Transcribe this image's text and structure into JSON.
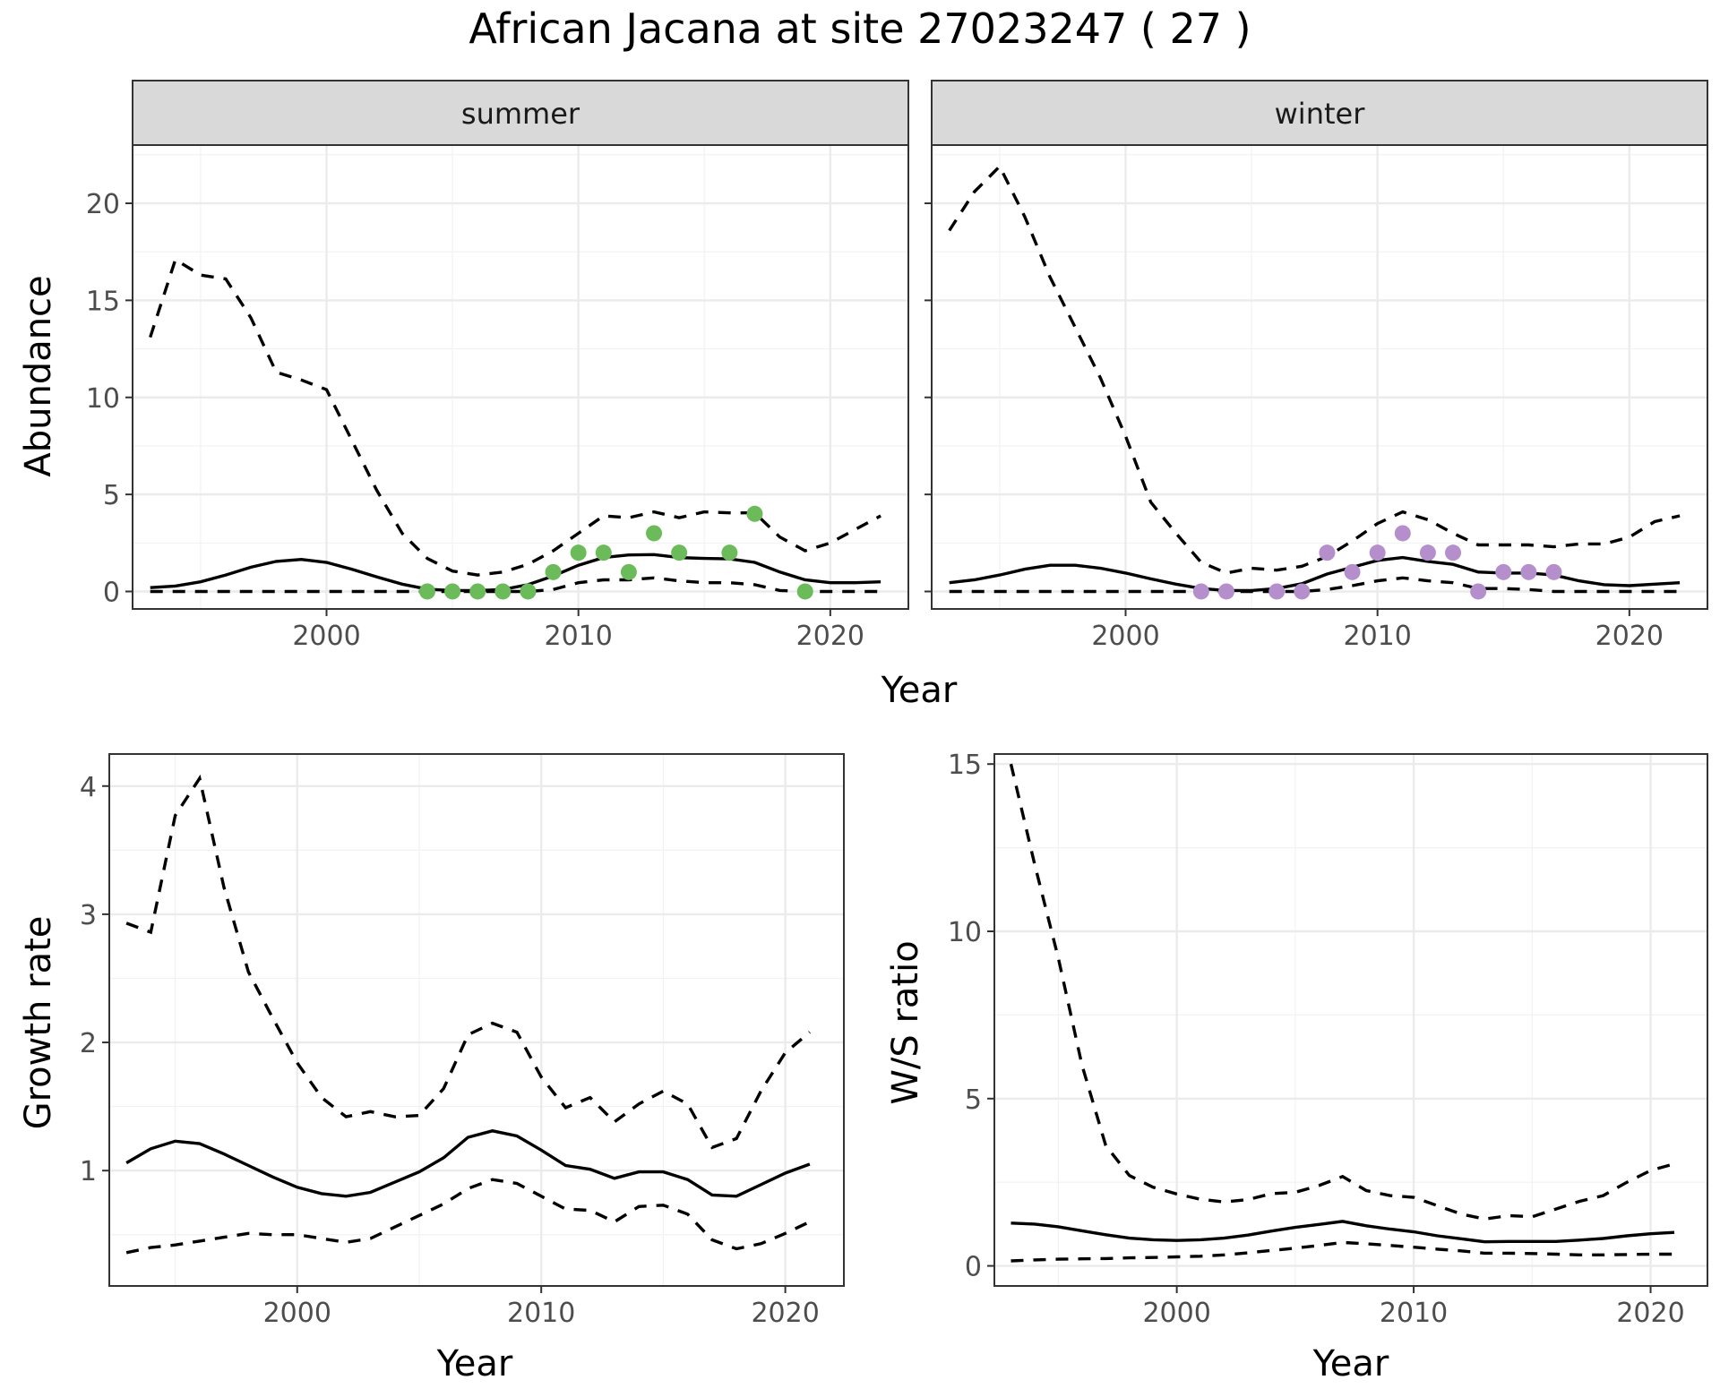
{
  "title": "African Jacana at site 27023247 ( 27 )",
  "colors": {
    "summer_points": "#6bbb5a",
    "winter_points": "#b48fcc",
    "line": "#000000"
  },
  "chart_data": [
    {
      "id": "summer",
      "type": "line",
      "facet": "summer",
      "ylabel": "Abundance",
      "xlim": [
        1992.3,
        2023.1
      ],
      "ylim": [
        -0.9,
        23
      ],
      "xticks": [
        2000,
        2010,
        2020
      ],
      "yticks": [
        0,
        5,
        10,
        15,
        20
      ],
      "grid": true,
      "fit": {
        "x": [
          1993,
          1994,
          1995,
          1996,
          1997,
          1998,
          1999,
          2000,
          2001,
          2002,
          2003,
          2004,
          2005,
          2006,
          2007,
          2008,
          2009,
          2010,
          2011,
          2012,
          2013,
          2014,
          2015,
          2016,
          2017,
          2018,
          2019,
          2020,
          2021,
          2022
        ],
        "y": [
          0.2,
          0.28,
          0.5,
          0.85,
          1.25,
          1.55,
          1.65,
          1.5,
          1.15,
          0.75,
          0.38,
          0.12,
          0.05,
          0.05,
          0.1,
          0.35,
          0.8,
          1.35,
          1.75,
          1.88,
          1.9,
          1.75,
          1.7,
          1.68,
          1.5,
          1.0,
          0.6,
          0.45,
          0.45,
          0.5
        ]
      },
      "upper": {
        "x": [
          1993,
          1994,
          1995,
          1996,
          1997,
          1998,
          1999,
          2000,
          2001,
          2002,
          2003,
          2004,
          2005,
          2006,
          2007,
          2008,
          2009,
          2010,
          2011,
          2012,
          2013,
          2014,
          2015,
          2016,
          2017,
          2018,
          2019,
          2020,
          2021,
          2022
        ],
        "y": [
          13.1,
          17.1,
          16.3,
          16.1,
          14.1,
          11.3,
          10.9,
          10.4,
          7.8,
          5.2,
          3.0,
          1.7,
          1.05,
          0.85,
          1.0,
          1.4,
          2.1,
          3.0,
          3.9,
          3.8,
          4.1,
          3.8,
          4.1,
          4.05,
          4.05,
          2.8,
          2.1,
          2.5,
          3.2,
          3.9
        ]
      },
      "lower": {
        "x": [
          1993,
          1994,
          1995,
          1996,
          1997,
          1998,
          1999,
          2000,
          2001,
          2002,
          2003,
          2004,
          2005,
          2006,
          2007,
          2008,
          2009,
          2010,
          2011,
          2012,
          2013,
          2014,
          2015,
          2016,
          2017,
          2018,
          2019,
          2020,
          2021,
          2022
        ],
        "y": [
          0,
          0,
          0,
          0,
          0,
          0,
          0,
          0,
          0,
          0,
          0,
          0,
          0,
          0,
          0,
          0,
          0.1,
          0.45,
          0.6,
          0.6,
          0.7,
          0.55,
          0.45,
          0.45,
          0.35,
          0.05,
          0,
          0,
          0,
          0
        ]
      },
      "points": {
        "x": [
          2004,
          2005,
          2006,
          2007,
          2008,
          2009,
          2010,
          2011,
          2012,
          2013,
          2014,
          2016,
          2017,
          2019
        ],
        "y": [
          0,
          0,
          0,
          0,
          0,
          1,
          2,
          2,
          1,
          3,
          2,
          2,
          4,
          0
        ]
      }
    },
    {
      "id": "winter",
      "type": "line",
      "facet": "winter",
      "ylabel": "",
      "xlim": [
        1992.3,
        2023.1
      ],
      "ylim": [
        -0.9,
        23
      ],
      "xticks": [
        2000,
        2010,
        2020
      ],
      "yticks": [
        0,
        5,
        10,
        15,
        20
      ],
      "grid": true,
      "fit": {
        "x": [
          1993,
          1994,
          1995,
          1996,
          1997,
          1998,
          1999,
          2000,
          2001,
          2002,
          2003,
          2004,
          2005,
          2006,
          2007,
          2008,
          2009,
          2010,
          2011,
          2012,
          2013,
          2014,
          2015,
          2016,
          2017,
          2018,
          2019,
          2020,
          2021,
          2022
        ],
        "y": [
          0.45,
          0.6,
          0.85,
          1.15,
          1.35,
          1.35,
          1.2,
          0.95,
          0.65,
          0.38,
          0.15,
          0.05,
          0.05,
          0.15,
          0.4,
          0.9,
          1.25,
          1.6,
          1.75,
          1.55,
          1.4,
          1.0,
          0.95,
          0.95,
          0.85,
          0.55,
          0.35,
          0.3,
          0.38,
          0.45
        ]
      },
      "upper": {
        "x": [
          1993,
          1994,
          1995,
          1996,
          1997,
          1998,
          1999,
          2000,
          2001,
          2002,
          2003,
          2004,
          2005,
          2006,
          2007,
          2008,
          2009,
          2010,
          2011,
          2012,
          2013,
          2014,
          2015,
          2016,
          2017,
          2018,
          2019,
          2020,
          2021,
          2022
        ],
        "y": [
          18.6,
          20.6,
          21.9,
          19.3,
          16.2,
          13.6,
          11.0,
          8.0,
          4.6,
          3.0,
          1.5,
          0.95,
          1.2,
          1.1,
          1.3,
          1.8,
          2.6,
          3.5,
          4.1,
          3.7,
          3.0,
          2.4,
          2.4,
          2.4,
          2.3,
          2.45,
          2.45,
          2.8,
          3.6,
          3.9
        ]
      },
      "lower": {
        "x": [
          1993,
          1994,
          1995,
          1996,
          1997,
          1998,
          1999,
          2000,
          2001,
          2002,
          2003,
          2004,
          2005,
          2006,
          2007,
          2008,
          2009,
          2010,
          2011,
          2012,
          2013,
          2014,
          2015,
          2016,
          2017,
          2018,
          2019,
          2020,
          2021,
          2022
        ],
        "y": [
          0,
          0,
          0,
          0,
          0,
          0,
          0,
          0,
          0,
          0,
          0,
          0,
          0,
          0,
          0,
          0.1,
          0.3,
          0.55,
          0.7,
          0.55,
          0.45,
          0.15,
          0.15,
          0.1,
          0,
          0,
          0,
          0,
          0,
          0
        ]
      },
      "points": {
        "x": [
          2003,
          2004,
          2006,
          2007,
          2008,
          2009,
          2010,
          2011,
          2012,
          2013,
          2014,
          2015,
          2016,
          2017
        ],
        "y": [
          0,
          0,
          0,
          0,
          2,
          1,
          2,
          3,
          2,
          2,
          0,
          1,
          1,
          1
        ]
      }
    },
    {
      "id": "growth",
      "type": "line",
      "xlabel": "Year",
      "ylabel": "Growth rate",
      "xlim": [
        1992.3,
        2022.4
      ],
      "ylim": [
        0.1,
        4.25
      ],
      "xticks": [
        2000,
        2010,
        2020
      ],
      "yticks": [
        1,
        2,
        3,
        4
      ],
      "grid": true,
      "fit": {
        "x": [
          1993,
          1994,
          1995,
          1996,
          1997,
          1998,
          1999,
          2000,
          2001,
          2002,
          2003,
          2004,
          2005,
          2006,
          2007,
          2008,
          2009,
          2010,
          2011,
          2012,
          2013,
          2014,
          2015,
          2016,
          2017,
          2018,
          2019,
          2020,
          2021
        ],
        "y": [
          1.06,
          1.17,
          1.23,
          1.21,
          1.13,
          1.04,
          0.95,
          0.87,
          0.82,
          0.8,
          0.83,
          0.91,
          0.99,
          1.1,
          1.26,
          1.31,
          1.27,
          1.16,
          1.04,
          1.01,
          0.94,
          0.99,
          0.99,
          0.93,
          0.81,
          0.8,
          0.89,
          0.98,
          1.05
        ]
      },
      "upper": {
        "x": [
          1993,
          1994,
          1995,
          1996,
          1997,
          1998,
          1999,
          2000,
          2001,
          2002,
          2003,
          2004,
          2005,
          2006,
          2007,
          2008,
          2009,
          2010,
          2011,
          2012,
          2013,
          2014,
          2015,
          2016,
          2017,
          2018,
          2019,
          2020,
          2021
        ],
        "y": [
          2.93,
          2.86,
          3.77,
          4.06,
          3.21,
          2.55,
          2.19,
          1.84,
          1.57,
          1.42,
          1.46,
          1.42,
          1.43,
          1.64,
          2.06,
          2.15,
          2.08,
          1.73,
          1.49,
          1.57,
          1.38,
          1.52,
          1.62,
          1.52,
          1.18,
          1.25,
          1.62,
          1.92,
          2.08
        ]
      },
      "lower": {
        "x": [
          1993,
          1994,
          1995,
          1996,
          1997,
          1998,
          1999,
          2000,
          2001,
          2002,
          2003,
          2004,
          2005,
          2006,
          2007,
          2008,
          2009,
          2010,
          2011,
          2012,
          2013,
          2014,
          2015,
          2016,
          2017,
          2018,
          2019,
          2020,
          2021
        ],
        "y": [
          0.36,
          0.4,
          0.42,
          0.45,
          0.48,
          0.51,
          0.5,
          0.5,
          0.47,
          0.44,
          0.47,
          0.56,
          0.65,
          0.74,
          0.86,
          0.93,
          0.9,
          0.8,
          0.7,
          0.69,
          0.6,
          0.72,
          0.73,
          0.66,
          0.46,
          0.39,
          0.43,
          0.51,
          0.6
        ]
      }
    },
    {
      "id": "ratio",
      "type": "line",
      "xlabel": "Year",
      "ylabel": "W/S ratio",
      "xlim": [
        1992.3,
        2022.4
      ],
      "ylim": [
        -0.6,
        15.3
      ],
      "xticks": [
        2000,
        2010,
        2020
      ],
      "yticks": [
        0,
        5,
        10,
        15
      ],
      "grid": true,
      "fit": {
        "x": [
          1993,
          1994,
          1995,
          1996,
          1997,
          1998,
          1999,
          2000,
          2001,
          2002,
          2003,
          2004,
          2005,
          2006,
          2007,
          2008,
          2009,
          2010,
          2011,
          2012,
          2013,
          2014,
          2015,
          2016,
          2017,
          2018,
          2019,
          2020,
          2021
        ],
        "y": [
          1.28,
          1.25,
          1.17,
          1.05,
          0.93,
          0.83,
          0.78,
          0.76,
          0.78,
          0.83,
          0.92,
          1.04,
          1.15,
          1.24,
          1.33,
          1.2,
          1.1,
          1.02,
          0.9,
          0.81,
          0.72,
          0.73,
          0.73,
          0.73,
          0.77,
          0.82,
          0.9,
          0.96,
          1.0
        ]
      },
      "upper": {
        "x": [
          1993,
          1994,
          1995,
          1996,
          1997,
          1998,
          1999,
          2000,
          2001,
          2002,
          2003,
          2004,
          2005,
          2006,
          2007,
          2008,
          2009,
          2010,
          2011,
          2012,
          2013,
          2014,
          2015,
          2016,
          2017,
          2018,
          2019,
          2020,
          2021
        ],
        "y": [
          15.0,
          12.0,
          9.2,
          6.0,
          3.6,
          2.7,
          2.35,
          2.15,
          1.99,
          1.91,
          1.98,
          2.16,
          2.2,
          2.4,
          2.67,
          2.25,
          2.1,
          2.05,
          1.8,
          1.55,
          1.4,
          1.5,
          1.47,
          1.7,
          1.93,
          2.1,
          2.5,
          2.85,
          3.05
        ]
      },
      "lower": {
        "x": [
          1993,
          1994,
          1995,
          1996,
          1997,
          1998,
          1999,
          2000,
          2001,
          2002,
          2003,
          2004,
          2005,
          2006,
          2007,
          2008,
          2009,
          2010,
          2011,
          2012,
          2013,
          2014,
          2015,
          2016,
          2017,
          2018,
          2019,
          2020,
          2021
        ],
        "y": [
          0.15,
          0.18,
          0.2,
          0.21,
          0.22,
          0.24,
          0.25,
          0.27,
          0.29,
          0.33,
          0.39,
          0.46,
          0.53,
          0.61,
          0.7,
          0.66,
          0.61,
          0.56,
          0.5,
          0.45,
          0.38,
          0.38,
          0.37,
          0.35,
          0.33,
          0.33,
          0.34,
          0.35,
          0.35
        ]
      }
    }
  ]
}
